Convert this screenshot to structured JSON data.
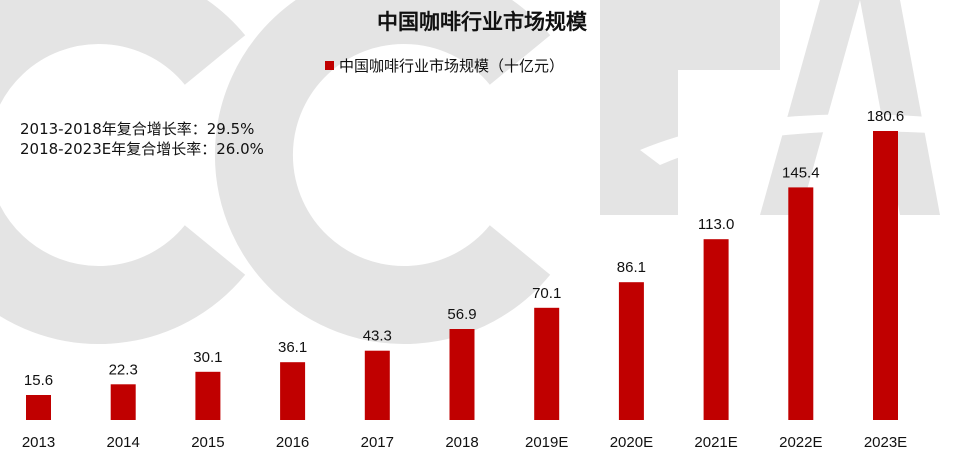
{
  "chart_data": {
    "type": "bar",
    "title": "中国咖啡行业市场规模",
    "legend": {
      "label": "中国咖啡行业市场规模（十亿元）",
      "placement": "top"
    },
    "annotations": [
      "2013-2018年复合增长率：29.5%",
      "2018-2023E年复合增长率：26.0%"
    ],
    "categories": [
      "2013",
      "2014",
      "2015",
      "2016",
      "2017",
      "2018",
      "2019E",
      "2020E",
      "2021E",
      "2022E",
      "2023E"
    ],
    "series": [
      {
        "name": "中国咖啡行业市场规模（十亿元）",
        "values": [
          15.6,
          22.3,
          30.1,
          36.1,
          43.3,
          56.9,
          70.1,
          86.1,
          113.0,
          145.4,
          180.6
        ],
        "labels": [
          "15.6",
          "22.3",
          "30.1",
          "36.1",
          "43.3",
          "56.9",
          "70.1",
          "86.1",
          "113.0",
          "145.4",
          "180.6"
        ]
      }
    ],
    "grid": false,
    "y_axis_visible": false,
    "colors": {
      "bar": "#c00000",
      "watermark": "#e3e3e3"
    }
  },
  "watermark": {
    "text": "CCFA"
  }
}
